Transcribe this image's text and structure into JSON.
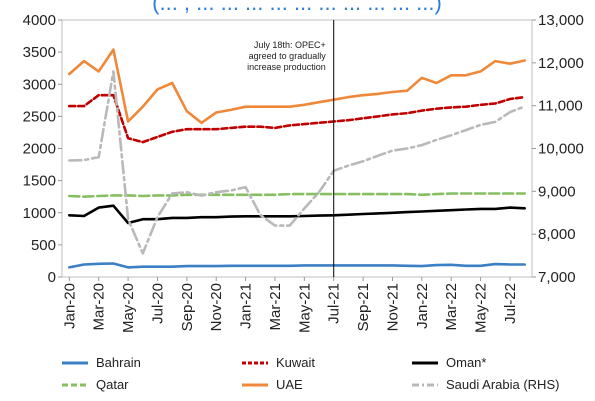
{
  "chart_data": {
    "type": "line",
    "title_fragment": "(... , ... ... ... ... ... ... ... ... ... ...)",
    "categories": [
      "Jan-20",
      "Feb-20",
      "Mar-20",
      "Apr-20",
      "May-20",
      "Jun-20",
      "Jul-20",
      "Aug-20",
      "Sep-20",
      "Oct-20",
      "Nov-20",
      "Dec-20",
      "Jan-21",
      "Feb-21",
      "Mar-21",
      "Apr-21",
      "May-21",
      "Jun-21",
      "Jul-21",
      "Aug-21",
      "Sep-21",
      "Oct-21",
      "Nov-21",
      "Dec-21",
      "Jan-22",
      "Feb-22",
      "Mar-22",
      "Apr-22",
      "May-22",
      "Jun-22",
      "Jul-22",
      "Aug-22"
    ],
    "x_tick_labels": [
      "Jan-20",
      "Mar-20",
      "May-20",
      "Jul-20",
      "Sep-20",
      "Nov-20",
      "Jan-21",
      "Mar-21",
      "May-21",
      "Jul-21",
      "Sep-21",
      "Nov-21",
      "Jan-22",
      "Mar-22",
      "May-22",
      "Jul-22"
    ],
    "y_left": {
      "ylim": [
        0,
        4000
      ],
      "ticks": [
        "0",
        "500",
        "1000",
        "1500",
        "2000",
        "2500",
        "3000",
        "3500",
        "4000"
      ]
    },
    "y_right": {
      "ylim": [
        7000,
        13000
      ],
      "ticks": [
        "7,000",
        "8,000",
        "9,000",
        "10,000",
        "11,000",
        "12,000",
        "13,000"
      ]
    },
    "annotation": {
      "lines": [
        "July 18th: OPEC+",
        "agreed to gradually",
        "increase production"
      ],
      "x_category": "Jul-21"
    },
    "legend_position": "bottom",
    "series": [
      {
        "name": "Bahrain",
        "axis": "left",
        "color": "#3b7fc4",
        "dash": "solid",
        "values": [
          150,
          195,
          205,
          210,
          150,
          160,
          160,
          160,
          170,
          170,
          170,
          175,
          175,
          175,
          175,
          175,
          180,
          180,
          180,
          180,
          180,
          180,
          180,
          175,
          170,
          185,
          190,
          175,
          175,
          200,
          195,
          195
        ]
      },
      {
        "name": "Kuwait",
        "axis": "left",
        "color": "#c00000",
        "dash": "dashed",
        "values": [
          2660,
          2660,
          2830,
          2830,
          2160,
          2100,
          2180,
          2260,
          2300,
          2300,
          2300,
          2320,
          2340,
          2340,
          2320,
          2360,
          2380,
          2400,
          2420,
          2440,
          2470,
          2500,
          2530,
          2550,
          2590,
          2620,
          2640,
          2650,
          2680,
          2700,
          2770,
          2800
        ]
      },
      {
        "name": "Oman*",
        "axis": "left",
        "color": "#000000",
        "dash": "solid",
        "values": [
          960,
          950,
          1080,
          1110,
          840,
          900,
          900,
          920,
          920,
          930,
          930,
          940,
          945,
          945,
          945,
          945,
          950,
          955,
          960,
          970,
          980,
          990,
          1000,
          1010,
          1020,
          1030,
          1040,
          1050,
          1060,
          1060,
          1080,
          1070
        ]
      },
      {
        "name": "Qatar",
        "axis": "left",
        "color": "#86be60",
        "dash": "longdash",
        "values": [
          1260,
          1250,
          1260,
          1270,
          1270,
          1260,
          1270,
          1270,
          1280,
          1280,
          1280,
          1280,
          1280,
          1280,
          1280,
          1290,
          1290,
          1290,
          1290,
          1290,
          1290,
          1290,
          1290,
          1290,
          1280,
          1290,
          1300,
          1300,
          1300,
          1300,
          1300,
          1300
        ]
      },
      {
        "name": "UAE",
        "axis": "left",
        "color": "#f0883a",
        "dash": "solid",
        "values": [
          3160,
          3360,
          3200,
          3540,
          2420,
          2650,
          2920,
          3020,
          2580,
          2400,
          2560,
          2600,
          2650,
          2650,
          2650,
          2650,
          2680,
          2720,
          2760,
          2800,
          2830,
          2850,
          2880,
          2900,
          3100,
          3020,
          3140,
          3140,
          3200,
          3360,
          3320,
          3370
        ]
      },
      {
        "name": "Saudi Arabia (RHS)",
        "axis": "right",
        "color": "#b9b9b9",
        "dash": "dashdot",
        "values": [
          9720,
          9730,
          9800,
          11800,
          8350,
          7550,
          8400,
          8950,
          8980,
          8900,
          8980,
          9020,
          9100,
          8450,
          8200,
          8200,
          8600,
          8980,
          9480,
          9600,
          9700,
          9830,
          9950,
          10000,
          10080,
          10200,
          10310,
          10430,
          10550,
          10620,
          10850,
          10980
        ]
      }
    ]
  }
}
